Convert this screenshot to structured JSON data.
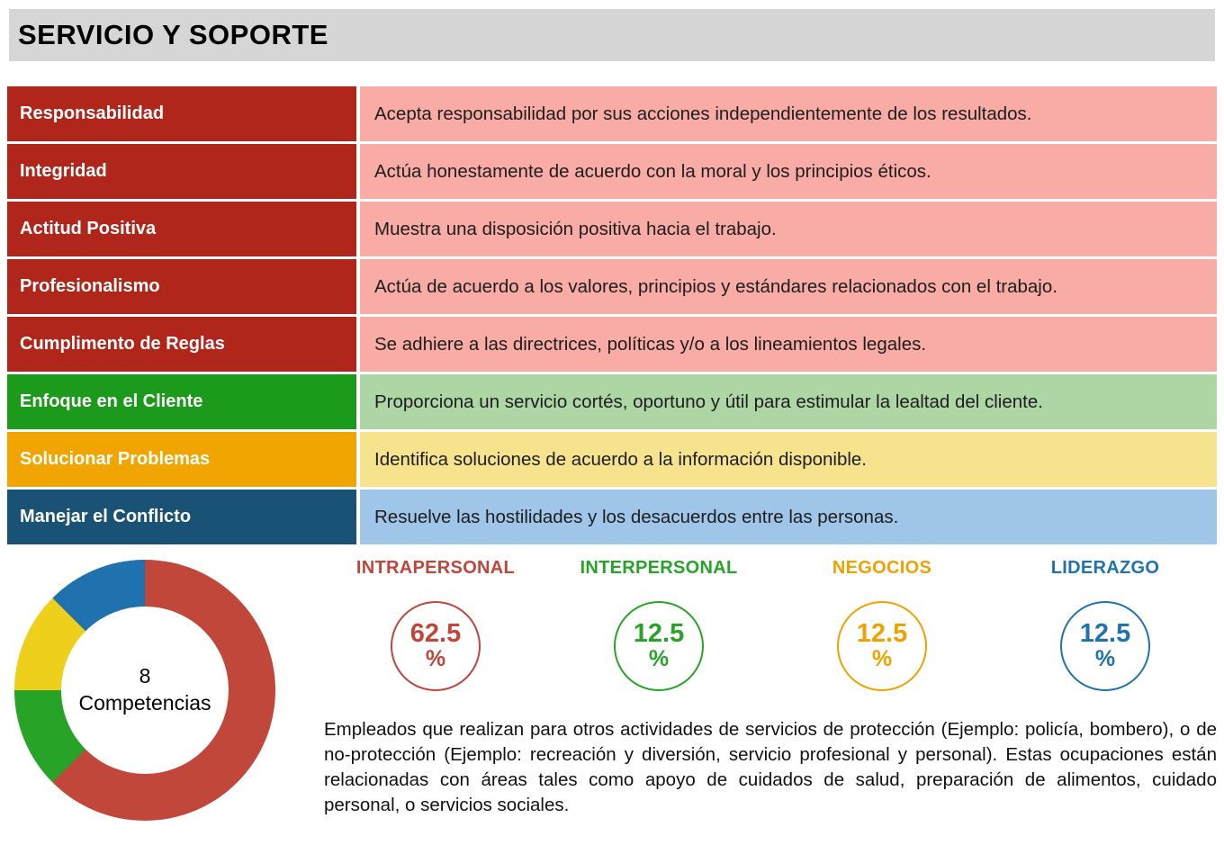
{
  "header": {
    "title": "SERVICIO Y SOPORTE"
  },
  "competencies": [
    {
      "label": "Responsabilidad",
      "description": "Acepta responsabilidad por sus acciones independientemente de los resultados.",
      "label_bg": "#b1261a",
      "desc_bg": "#f9aca5"
    },
    {
      "label": "Integridad",
      "description": "Actúa honestamente de acuerdo con la moral y los principios éticos.",
      "label_bg": "#b1261a",
      "desc_bg": "#f9aca5"
    },
    {
      "label": "Actitud Positiva",
      "description": "Muestra una disposición positiva hacia el trabajo.",
      "label_bg": "#b1261a",
      "desc_bg": "#f9aca5"
    },
    {
      "label": "Profesionalismo",
      "description": "Actúa de acuerdo a los valores, principios y estándares relacionados con el trabajo.",
      "label_bg": "#b1261a",
      "desc_bg": "#f9aca5"
    },
    {
      "label": "Cumplimento de Reglas",
      "description": "Se adhiere a las directrices, políticas y/o a los lineamientos legales.",
      "label_bg": "#b1261a",
      "desc_bg": "#f9aca5"
    },
    {
      "label": "Enfoque en el Cliente",
      "description": "Proporciona un servicio cortés, oportuno y útil para estimular la lealtad del cliente.",
      "label_bg": "#1b9a1b",
      "desc_bg": "#aed6a4"
    },
    {
      "label": "Solucionar Problemas",
      "description": "Identifica soluciones de acuerdo a la información disponible.",
      "label_bg": "#f0a500",
      "desc_bg": "#f6e38d"
    },
    {
      "label": "Manejar el Conflicto",
      "description": "Resuelve las hostilidades y los desacuerdos entre las personas.",
      "label_bg": "#1a5276",
      "desc_bg": "#9fc5e8"
    }
  ],
  "summary": {
    "donut_center": {
      "count": "8",
      "caption": "Competencias"
    },
    "stats": [
      {
        "label": "INTRAPERSONAL",
        "value": "62.5",
        "unit": "%",
        "color": "#c0453a"
      },
      {
        "label": "INTERPERSONAL",
        "value": "12.5",
        "unit": "%",
        "color": "#27a427"
      },
      {
        "label": "NEGOCIOS",
        "value": "12.5",
        "unit": "%",
        "color": "#eda200"
      },
      {
        "label": "LIDERAZGO",
        "value": "12.5",
        "unit": "%",
        "color": "#1f72ad"
      }
    ],
    "paragraph": "Empleados que realizan para otros actividades de servicios de protección (Ejemplo: policía, bombero), o de no-protección (Ejemplo: recreación y diversión, servicio profesional y personal). Estas ocupaciones están relacionadas con áreas tales como apoyo de cuidados de salud, preparación de alimentos, cuidado personal, o servicios sociales."
  },
  "chart_data": {
    "type": "pie",
    "donut": true,
    "title": "8 Competencias",
    "start_angle_deg": 0,
    "direction": "clockwise",
    "slices": [
      {
        "label": "Intrapersonal",
        "value": 62.5,
        "color": "#c1473b"
      },
      {
        "label": "Interpersonal",
        "value": 12.5,
        "color": "#27a427"
      },
      {
        "label": "Negocios",
        "value": 12.5,
        "color": "#eecf1b"
      },
      {
        "label": "Liderazgo",
        "value": 12.5,
        "color": "#1f72ad"
      }
    ]
  }
}
